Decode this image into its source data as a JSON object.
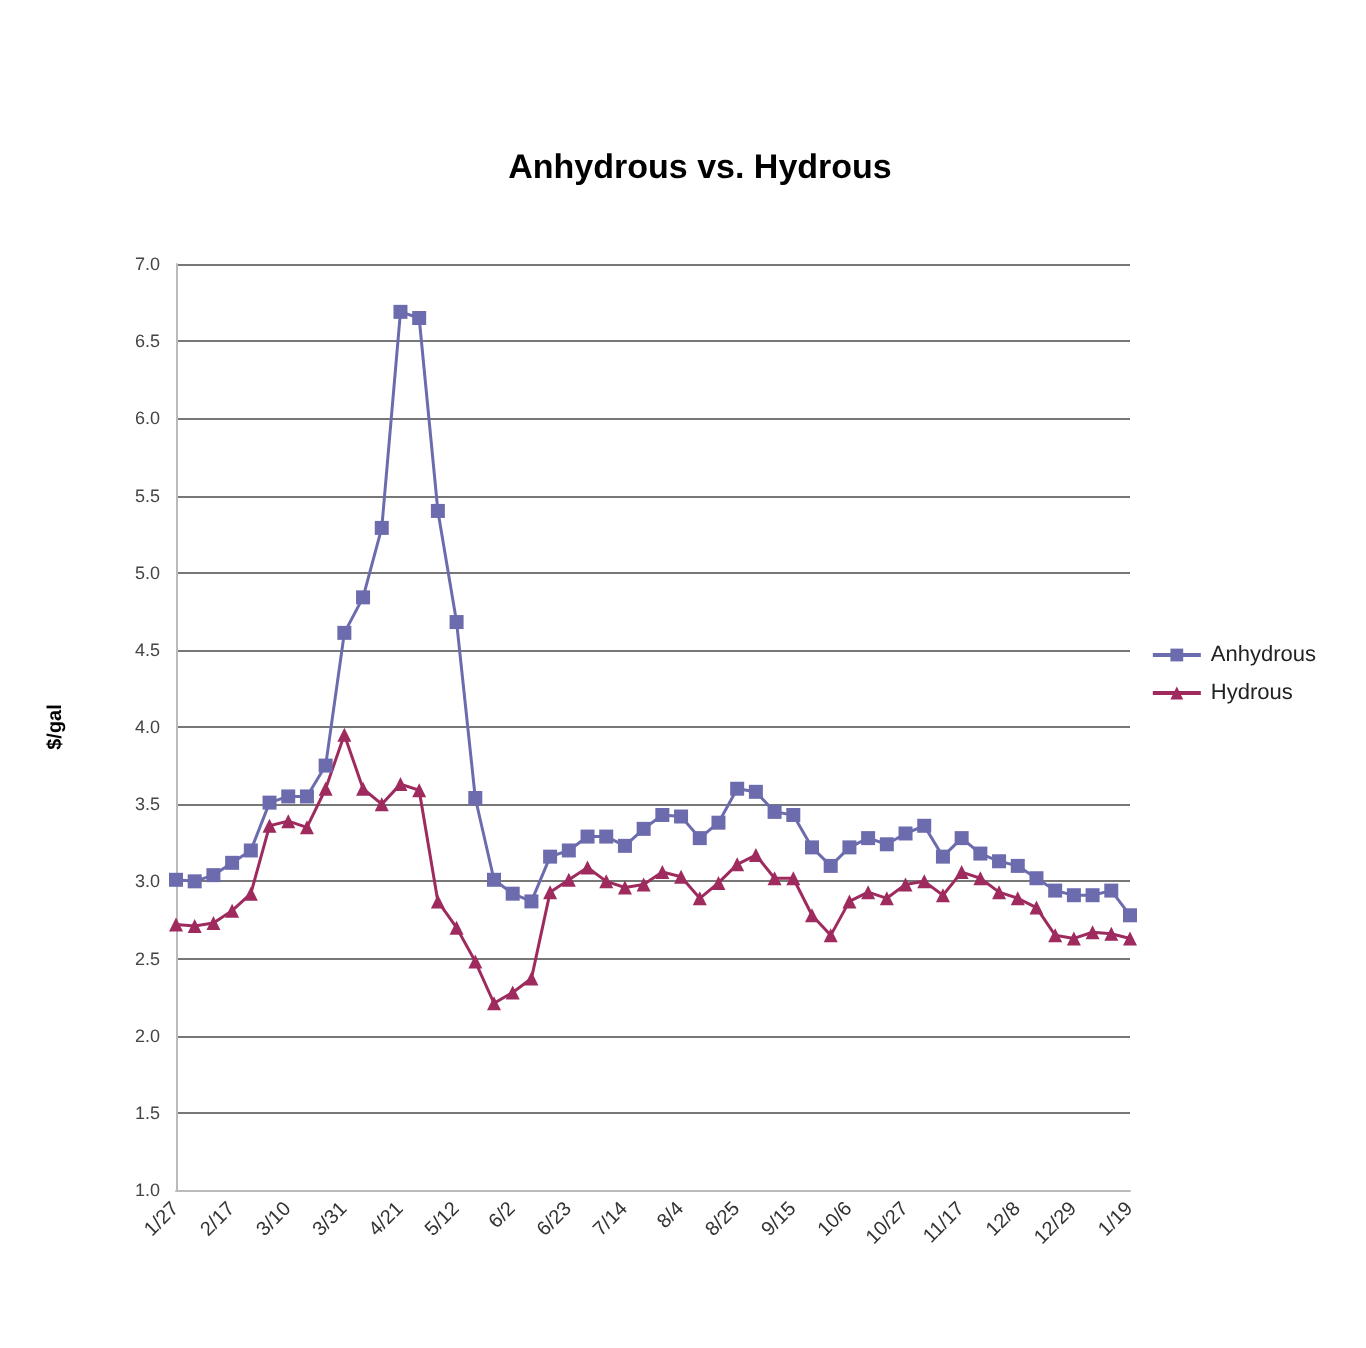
{
  "chart_data": {
    "type": "line",
    "title": "Anhydrous vs. Hydrous",
    "ylabel": "$/gal",
    "categories": [
      "1/27",
      null,
      null,
      "2/17",
      null,
      null,
      "3/10",
      null,
      null,
      "3/31",
      null,
      null,
      "4/21",
      null,
      null,
      "5/12",
      null,
      null,
      "6/2",
      null,
      null,
      "6/23",
      null,
      null,
      "7/14",
      null,
      null,
      "8/4",
      null,
      null,
      "8/25",
      null,
      null,
      "9/15",
      null,
      null,
      "10/6",
      null,
      null,
      "10/27",
      null,
      null,
      "11/17",
      null,
      null,
      "12/8",
      null,
      null,
      "12/29",
      null,
      null,
      "1/19"
    ],
    "series": [
      {
        "name": "Anhydrous",
        "color": "#6b6bae",
        "marker": "square",
        "values": [
          3.01,
          3.0,
          3.04,
          3.12,
          3.2,
          3.51,
          3.55,
          3.55,
          3.75,
          4.61,
          4.84,
          5.29,
          6.69,
          6.65,
          5.4,
          4.68,
          3.54,
          3.01,
          2.92,
          2.87,
          3.16,
          3.2,
          3.29,
          3.29,
          3.23,
          3.34,
          3.43,
          3.42,
          3.28,
          3.38,
          3.6,
          3.58,
          3.45,
          3.43,
          3.22,
          3.1,
          3.22,
          3.28,
          3.24,
          3.31,
          3.36,
          3.16,
          3.28,
          3.18,
          3.13,
          3.1,
          3.02,
          2.94,
          2.91,
          2.91,
          2.94,
          2.78
        ]
      },
      {
        "name": "Hydrous",
        "color": "#9e2a5e",
        "marker": "triangle",
        "values": [
          2.72,
          2.71,
          2.73,
          2.81,
          2.92,
          3.36,
          3.39,
          3.35,
          3.6,
          3.95,
          3.6,
          3.5,
          3.63,
          3.59,
          2.87,
          2.7,
          2.48,
          2.21,
          2.28,
          2.37,
          2.93,
          3.01,
          3.09,
          3.0,
          2.96,
          2.98,
          3.06,
          3.03,
          2.89,
          2.99,
          3.11,
          3.17,
          3.02,
          3.02,
          2.78,
          2.65,
          2.87,
          2.93,
          2.89,
          2.98,
          3.0,
          2.91,
          3.06,
          3.02,
          2.93,
          2.89,
          2.83,
          2.65,
          2.63,
          2.67,
          2.66,
          2.63
        ]
      }
    ],
    "ylim": [
      1,
      7
    ],
    "yticks": [
      {
        "value": 1,
        "label": "1.0"
      },
      {
        "value": 1.5,
        "label": "1.5"
      },
      {
        "value": 2,
        "label": "2.0"
      },
      {
        "value": 2.5,
        "label": "2.5"
      },
      {
        "value": 3,
        "label": "3.0"
      },
      {
        "value": 3.5,
        "label": "3.5"
      },
      {
        "value": 4,
        "label": "4.0"
      },
      {
        "value": 4.5,
        "label": "4.5"
      },
      {
        "value": 5,
        "label": "5.0"
      },
      {
        "value": 5.5,
        "label": "5.5"
      },
      {
        "value": 6,
        "label": "6.0"
      },
      {
        "value": 6.5,
        "label": "6.5"
      },
      {
        "value": 7,
        "label": "7.0"
      }
    ],
    "grid": "y",
    "legend": "right",
    "line_style": "solid"
  }
}
